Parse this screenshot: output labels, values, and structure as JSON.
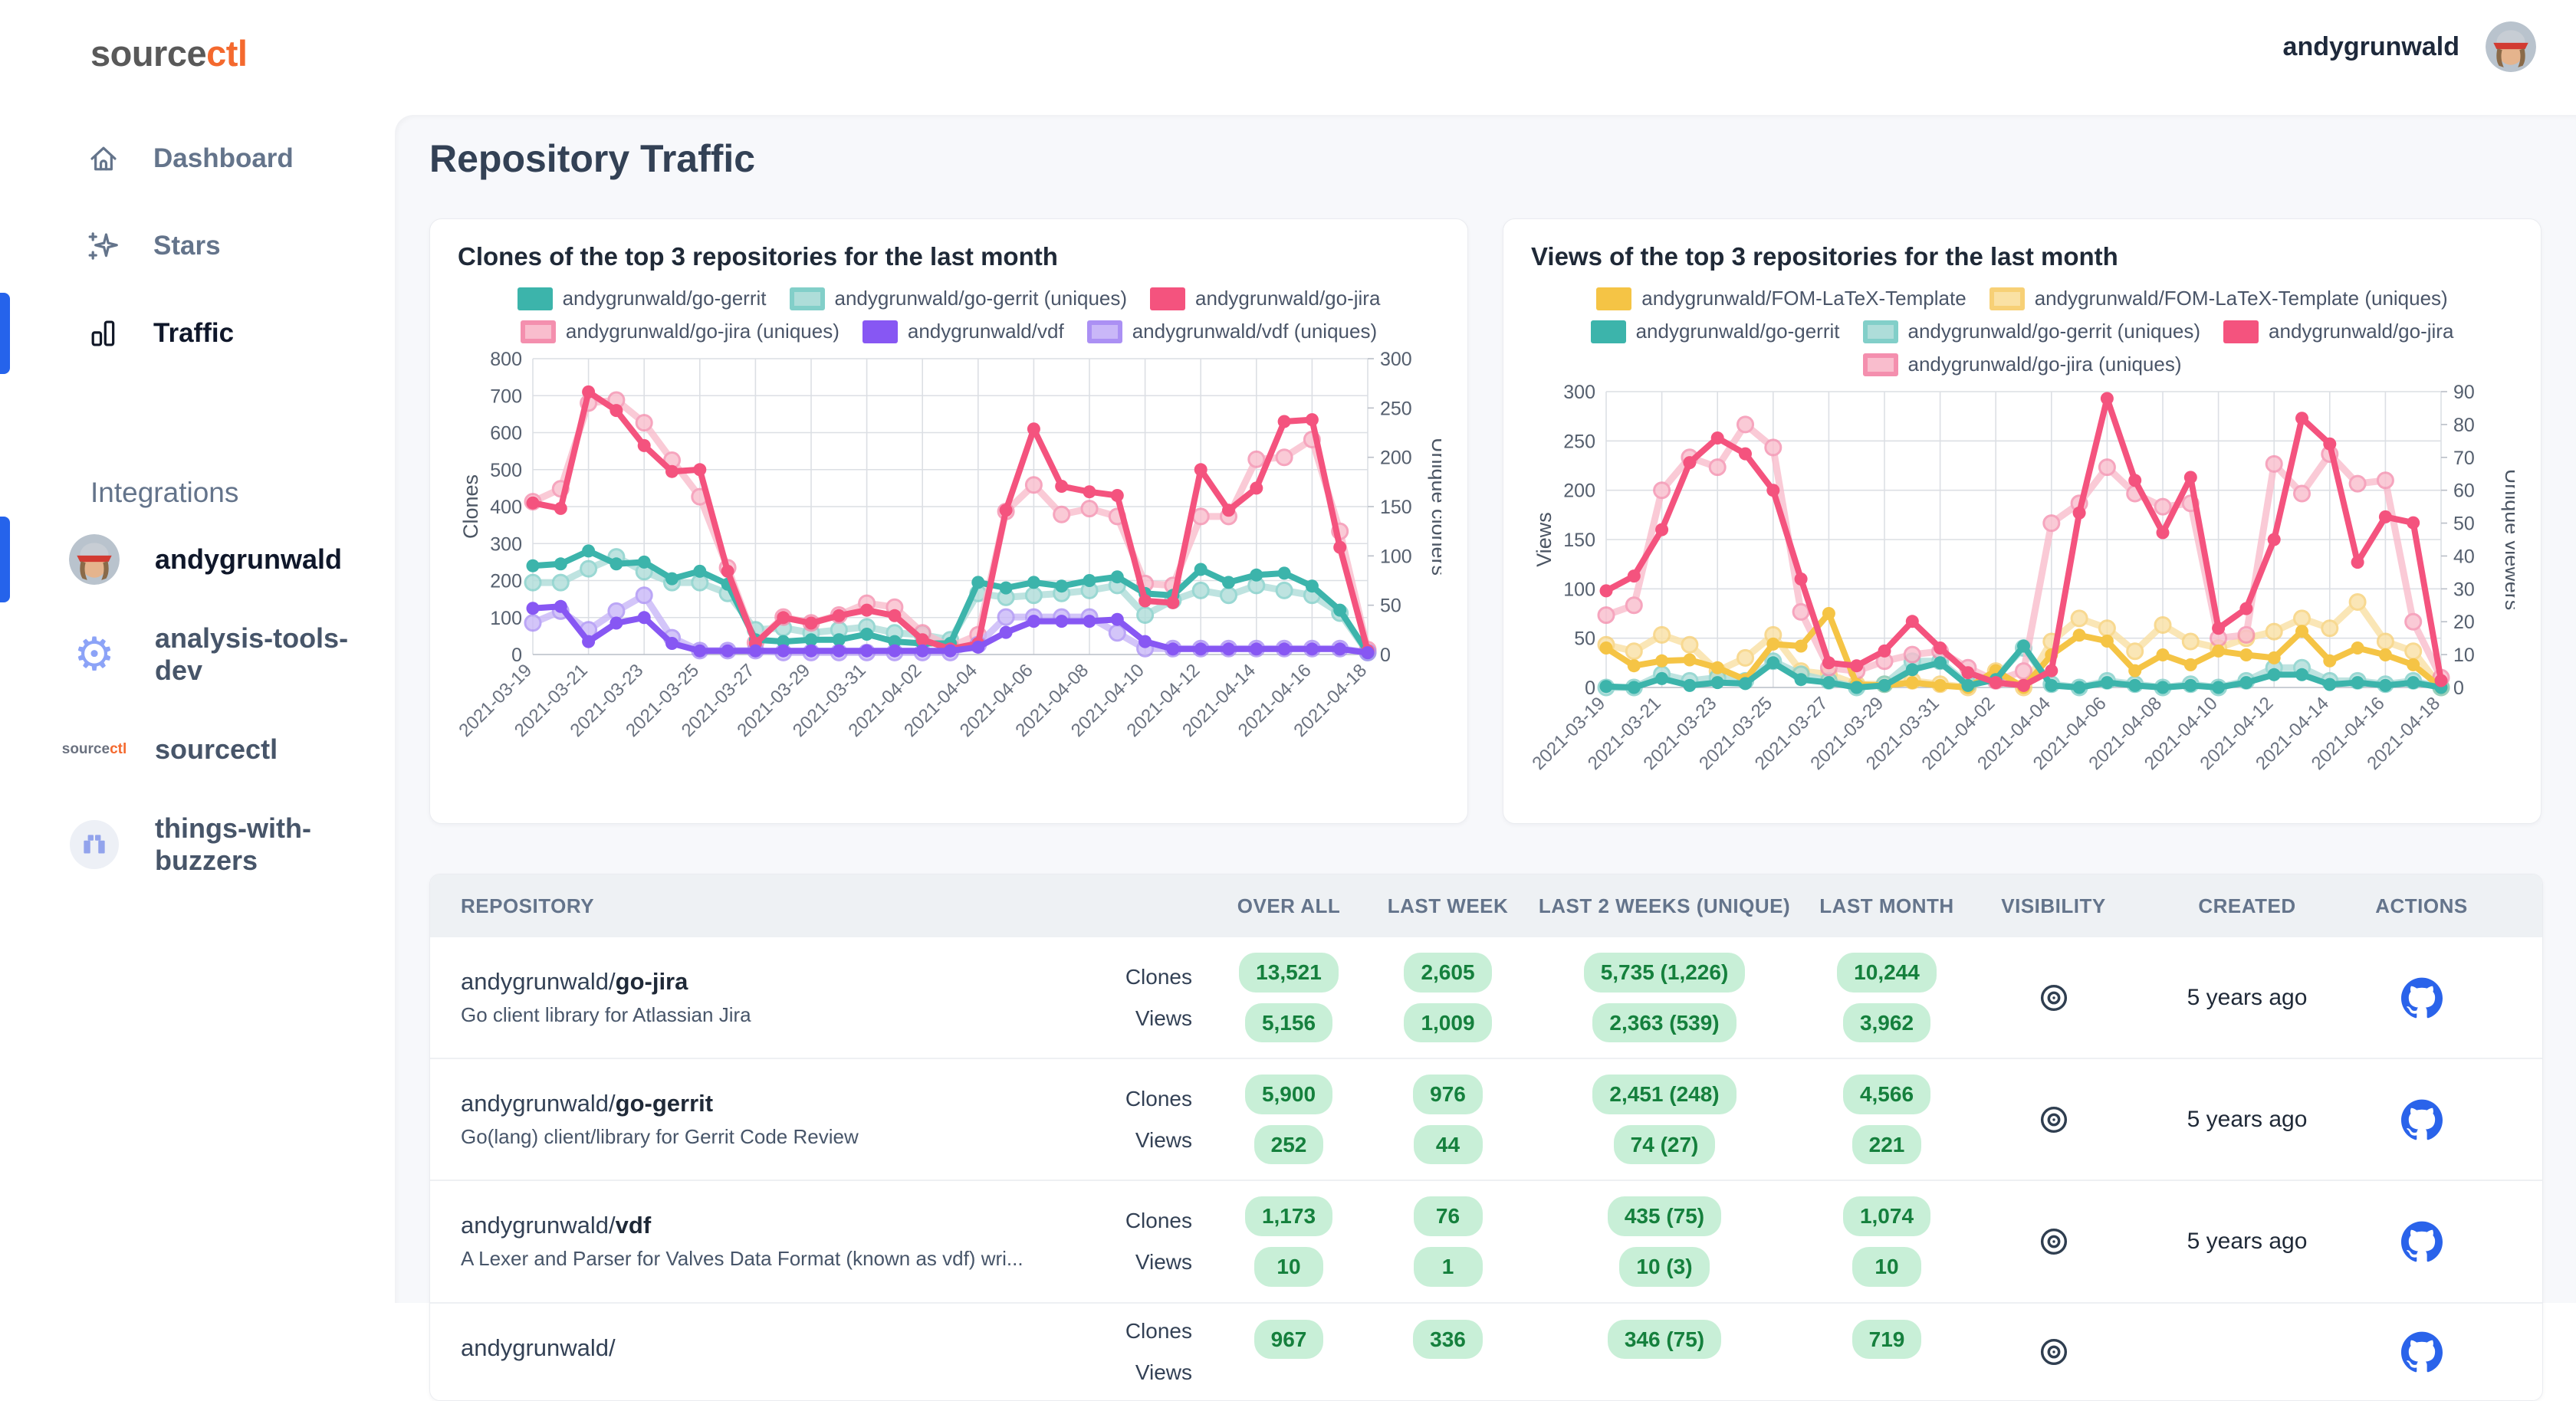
{
  "app": {
    "logo_source": "source",
    "logo_ctl": "ctl",
    "user": "andygrunwald"
  },
  "sidebar": {
    "items": [
      {
        "label": "Dashboard",
        "icon": "home",
        "active": false
      },
      {
        "label": "Stars",
        "icon": "sparkles",
        "active": false
      },
      {
        "label": "Traffic",
        "icon": "bar-chart",
        "active": true
      }
    ],
    "integrations_label": "Integrations",
    "integrations": [
      {
        "label": "andygrunwald",
        "icon": "user-avatar",
        "active": true
      },
      {
        "label": "analysis-tools-dev",
        "icon": "gear",
        "active": false
      },
      {
        "label": "sourcectl",
        "icon": "sourcectl-logo",
        "active": false
      },
      {
        "label": "things-with-buzzers",
        "icon": "buzzer-pixels",
        "active": false
      }
    ]
  },
  "page": {
    "title": "Repository Traffic"
  },
  "chart_data": [
    {
      "type": "line",
      "title": "Clones of the top 3 repositories for the last month",
      "ylabel_left": "Clones",
      "ylabel_right": "Unique cloners",
      "ylim_left": [
        0,
        800
      ],
      "ytick_step_left": 100,
      "ylim_right": [
        0,
        300
      ],
      "ytick_step_right": 50,
      "grid": true,
      "legend_position": "top",
      "x": [
        "2021-03-19",
        "2021-03-20",
        "2021-03-21",
        "2021-03-22",
        "2021-03-23",
        "2021-03-24",
        "2021-03-25",
        "2021-03-26",
        "2021-03-27",
        "2021-03-28",
        "2021-03-29",
        "2021-03-30",
        "2021-03-31",
        "2021-04-01",
        "2021-04-02",
        "2021-04-03",
        "2021-04-04",
        "2021-04-05",
        "2021-04-06",
        "2021-04-07",
        "2021-04-08",
        "2021-04-09",
        "2021-04-10",
        "2021-04-11",
        "2021-04-12",
        "2021-04-13",
        "2021-04-14",
        "2021-04-15",
        "2021-04-16",
        "2021-04-17",
        "2021-04-18"
      ],
      "series": [
        {
          "name": "andygrunwald/go-gerrit",
          "axis": "left",
          "style": "solid",
          "color": "#3cb4ab",
          "values": [
            240,
            245,
            280,
            245,
            250,
            205,
            225,
            190,
            40,
            35,
            40,
            40,
            55,
            35,
            30,
            30,
            195,
            180,
            195,
            185,
            200,
            210,
            165,
            160,
            230,
            195,
            215,
            220,
            185,
            120,
            5
          ]
        },
        {
          "name": "andygrunwald/go-gerrit (uniques)",
          "axis": "right",
          "style": "uniques",
          "color": "#aeddd9",
          "border": "#82cfc9",
          "values": [
            73,
            73,
            87,
            99,
            84,
            73,
            73,
            62,
            25,
            27,
            22,
            25,
            28,
            22,
            20,
            15,
            62,
            58,
            60,
            62,
            65,
            70,
            40,
            55,
            65,
            60,
            70,
            65,
            60,
            42,
            2
          ]
        },
        {
          "name": "andygrunwald/go-jira",
          "axis": "left",
          "style": "solid",
          "color": "#f4537e",
          "values": [
            410,
            395,
            710,
            660,
            565,
            495,
            500,
            225,
            30,
            100,
            85,
            105,
            120,
            105,
            40,
            15,
            30,
            390,
            610,
            455,
            440,
            430,
            145,
            140,
            500,
            390,
            450,
            630,
            635,
            290,
            10
          ]
        },
        {
          "name": "andygrunwald/go-jira (uniques)",
          "axis": "right",
          "style": "uniques",
          "color": "#f9bdcd",
          "border": "#f48fae",
          "values": [
            155,
            168,
            255,
            258,
            235,
            197,
            160,
            88,
            12,
            38,
            32,
            40,
            52,
            48,
            22,
            8,
            20,
            145,
            172,
            142,
            148,
            140,
            72,
            70,
            140,
            140,
            198,
            200,
            218,
            125,
            5
          ]
        },
        {
          "name": "andygrunwald/vdf",
          "axis": "left",
          "style": "solid",
          "color": "#8757f3",
          "values": [
            125,
            130,
            35,
            85,
            100,
            30,
            10,
            10,
            10,
            10,
            10,
            10,
            10,
            10,
            10,
            10,
            20,
            60,
            90,
            90,
            90,
            95,
            35,
            15,
            15,
            15,
            15,
            15,
            15,
            15,
            5
          ]
        },
        {
          "name": "andygrunwald/vdf (uniques)",
          "axis": "right",
          "style": "uniques",
          "color": "#c9b7f8",
          "border": "#ab90f4",
          "values": [
            32,
            44,
            25,
            44,
            60,
            17,
            4,
            4,
            4,
            2,
            2,
            2,
            2,
            2,
            2,
            2,
            10,
            38,
            38,
            38,
            38,
            22,
            6,
            6,
            6,
            6,
            6,
            6,
            6,
            6,
            2
          ]
        }
      ]
    },
    {
      "type": "line",
      "title": "Views of the top 3 repositories for the last month",
      "ylabel_left": "Views",
      "ylabel_right": "Unique viewers",
      "ylim_left": [
        0,
        300
      ],
      "ytick_step_left": 50,
      "ylim_right": [
        0,
        90
      ],
      "ytick_step_right": 10,
      "grid": true,
      "legend_position": "top",
      "x": [
        "2021-03-19",
        "2021-03-20",
        "2021-03-21",
        "2021-03-22",
        "2021-03-23",
        "2021-03-24",
        "2021-03-25",
        "2021-03-26",
        "2021-03-27",
        "2021-03-28",
        "2021-03-29",
        "2021-03-30",
        "2021-03-31",
        "2021-04-01",
        "2021-04-02",
        "2021-04-03",
        "2021-04-04",
        "2021-04-05",
        "2021-04-06",
        "2021-04-07",
        "2021-04-08",
        "2021-04-09",
        "2021-04-10",
        "2021-04-11",
        "2021-04-12",
        "2021-04-13",
        "2021-04-14",
        "2021-04-15",
        "2021-04-16",
        "2021-04-17",
        "2021-04-18"
      ],
      "series": [
        {
          "name": "andygrunwald/FOM-LaTeX-Template",
          "axis": "left",
          "style": "solid",
          "color": "#f5c445",
          "values": [
            40,
            22,
            27,
            28,
            20,
            8,
            44,
            42,
            75,
            3,
            2,
            5,
            2,
            0,
            17,
            0,
            33,
            53,
            47,
            17,
            33,
            23,
            37,
            33,
            30,
            57,
            27,
            40,
            33,
            23,
            0
          ]
        },
        {
          "name": "andygrunwald/FOM-LaTeX-Template (uniques)",
          "axis": "right",
          "style": "uniques",
          "color": "#fae1a4",
          "border": "#f7d076",
          "values": [
            13,
            11,
            16,
            13,
            5,
            9,
            16,
            5,
            4,
            1,
            1,
            2,
            1,
            0,
            5,
            0,
            14,
            21,
            18,
            11,
            19,
            14,
            12,
            15,
            17,
            21,
            18,
            26,
            14,
            11,
            0
          ]
        },
        {
          "name": "andygrunwald/go-gerrit",
          "axis": "left",
          "style": "solid",
          "color": "#3cb4ab",
          "values": [
            1,
            0,
            9,
            2,
            5,
            4,
            25,
            8,
            5,
            0,
            2,
            18,
            25,
            2,
            8,
            42,
            2,
            0,
            5,
            2,
            0,
            2,
            0,
            5,
            13,
            13,
            3,
            5,
            2,
            5,
            0
          ]
        },
        {
          "name": "andygrunwald/go-gerrit (uniques)",
          "axis": "right",
          "style": "uniques",
          "color": "#aeddd9",
          "border": "#82cfc9",
          "values": [
            0,
            0,
            4,
            2,
            3,
            2,
            8,
            4,
            2,
            0,
            1,
            8,
            8,
            1,
            3,
            12,
            1,
            0,
            2,
            1,
            0,
            1,
            0,
            2,
            6,
            6,
            2,
            2,
            1,
            2,
            0
          ]
        },
        {
          "name": "andygrunwald/go-jira",
          "axis": "left",
          "style": "solid",
          "color": "#f4537e",
          "values": [
            98,
            113,
            160,
            228,
            253,
            237,
            200,
            110,
            25,
            22,
            37,
            67,
            40,
            15,
            5,
            2,
            17,
            177,
            293,
            210,
            157,
            213,
            60,
            80,
            150,
            273,
            247,
            127,
            173,
            167,
            7
          ]
        },
        {
          "name": "andygrunwald/go-jira (uniques)",
          "axis": "right",
          "style": "uniques",
          "color": "#f9bdcd",
          "border": "#f48fae",
          "values": [
            22,
            25,
            60,
            70,
            67,
            80,
            73,
            23,
            6,
            5,
            8,
            10,
            11,
            6,
            2,
            5,
            50,
            56,
            67,
            59,
            55,
            56,
            15,
            16,
            68,
            59,
            71,
            62,
            63,
            20,
            3
          ]
        }
      ]
    }
  ],
  "table": {
    "headers": [
      "REPOSITORY",
      "OVER ALL",
      "LAST WEEK",
      "LAST 2 WEEKS (UNIQUE)",
      "LAST MONTH",
      "VISIBILITY",
      "CREATED",
      "ACTIONS"
    ],
    "metric_labels": [
      "Clones",
      "Views"
    ],
    "rows": [
      {
        "owner": "andygrunwald/",
        "name": "go-jira",
        "description": "Go client library for Atlassian Jira",
        "clones": [
          "13,521",
          "2,605",
          "5,735 (1,226)",
          "10,244"
        ],
        "views": [
          "5,156",
          "1,009",
          "2,363 (539)",
          "3,962"
        ],
        "visibility": "public-eye",
        "created": "5 years ago",
        "action": "github"
      },
      {
        "owner": "andygrunwald/",
        "name": "go-gerrit",
        "description": "Go(lang) client/library for Gerrit Code Review",
        "clones": [
          "5,900",
          "976",
          "2,451 (248)",
          "4,566"
        ],
        "views": [
          "252",
          "44",
          "74 (27)",
          "221"
        ],
        "visibility": "public-eye",
        "created": "5 years ago",
        "action": "github"
      },
      {
        "owner": "andygrunwald/",
        "name": "vdf",
        "description": "A Lexer and Parser for Valves Data Format (known as vdf) wri...",
        "clones": [
          "1,173",
          "76",
          "435 (75)",
          "1,074"
        ],
        "views": [
          "10",
          "1",
          "10 (3)",
          "10"
        ],
        "visibility": "public-eye",
        "created": "5 years ago",
        "action": "github"
      },
      {
        "owner": "andygrunwald/",
        "name": "",
        "description": "",
        "clones": [
          "967",
          "336",
          "346 (75)",
          "719"
        ],
        "views": [
          "",
          "",
          "",
          ""
        ],
        "visibility": "public-eye",
        "created": "",
        "action": "github"
      }
    ]
  },
  "colors": {
    "accent_blue": "#2563eb",
    "logo_orange": "#f4692e",
    "badge_bg": "#c8efd7",
    "badge_text": "#15803d",
    "content_bg": "#f7f8fb",
    "grid_line": "#dcdfe4"
  }
}
